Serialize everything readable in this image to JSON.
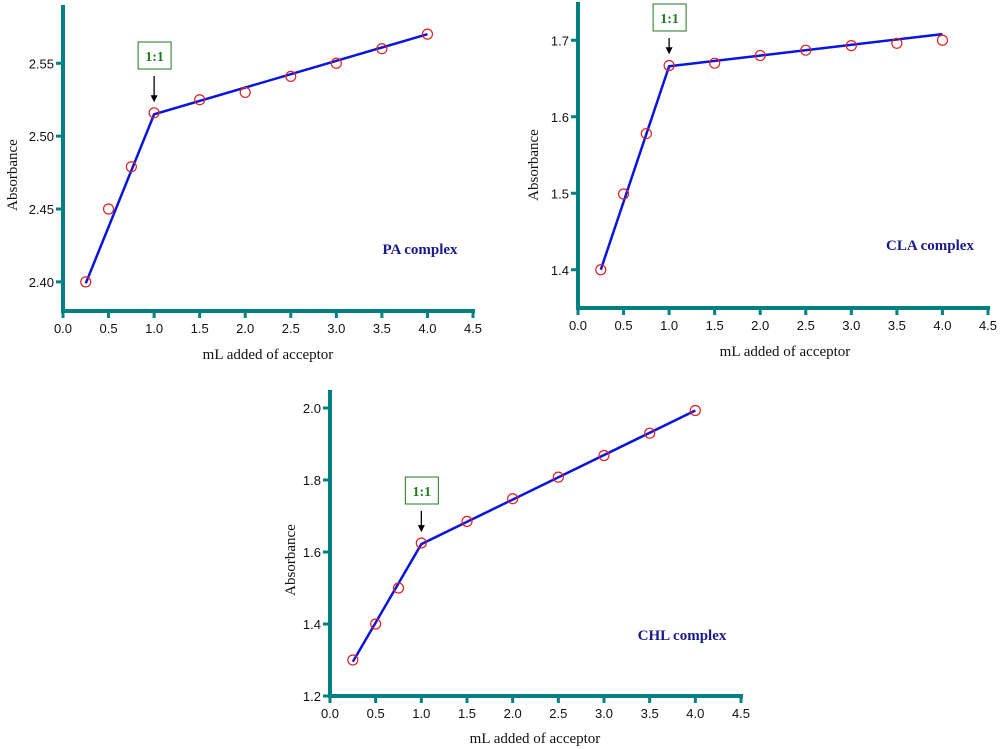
{
  "colors": {
    "axis": "#008080",
    "line": "#0a14e0",
    "marker": "#e02020",
    "annotation": "#1d7a1d",
    "label": "#1a1a8c"
  },
  "chart_data": [
    {
      "type": "line",
      "title": "PA complex",
      "xlabel": "mL added of acceptor",
      "ylabel": "Absorbance",
      "xlim": [
        0,
        4.5
      ],
      "ylim": [
        2.38,
        2.59
      ],
      "xticks": [
        "0.0",
        "0.5",
        "1.0",
        "1.5",
        "2.0",
        "2.5",
        "3.0",
        "3.5",
        "4.0",
        "4.5"
      ],
      "yticks": [
        "2.40",
        "2.45",
        "2.50",
        "2.55"
      ],
      "points": {
        "x": [
          0.25,
          0.5,
          0.75,
          1.0,
          1.5,
          2.0,
          2.5,
          3.0,
          3.5,
          4.0
        ],
        "y": [
          2.4,
          2.45,
          2.479,
          2.516,
          2.525,
          2.53,
          2.541,
          2.55,
          2.56,
          2.57
        ]
      },
      "fit_line": {
        "x": [
          0.25,
          1.0,
          4.0
        ],
        "y": [
          2.399,
          2.515,
          2.57
        ]
      },
      "annotation": {
        "text": "1:1",
        "x": 1.0
      }
    },
    {
      "type": "line",
      "title": "CLA complex",
      "xlabel": "mL added of acceptor",
      "ylabel": "Absorbance",
      "xlim": [
        0,
        4.5
      ],
      "ylim": [
        1.35,
        1.75
      ],
      "xticks": [
        "0.0",
        "0.5",
        "1.0",
        "1.5",
        "2.0",
        "2.5",
        "3.0",
        "3.5",
        "4.0",
        "4.5"
      ],
      "yticks": [
        "1.4",
        "1.5",
        "1.6",
        "1.7"
      ],
      "points": {
        "x": [
          0.25,
          0.5,
          0.75,
          1.0,
          1.5,
          2.0,
          2.5,
          3.0,
          3.5,
          4.0
        ],
        "y": [
          1.4,
          1.499,
          1.578,
          1.667,
          1.67,
          1.68,
          1.687,
          1.693,
          1.696,
          1.7
        ]
      },
      "fit_line": {
        "x": [
          0.25,
          1.0,
          4.0
        ],
        "y": [
          1.4,
          1.666,
          1.708
        ]
      },
      "annotation": {
        "text": "1:1",
        "x": 1.0
      }
    },
    {
      "type": "line",
      "title": "CHL complex",
      "xlabel": "mL added of acceptor",
      "ylabel": "Absorbance",
      "xlim": [
        0,
        4.5
      ],
      "ylim": [
        1.2,
        2.05
      ],
      "xticks": [
        "0.0",
        "0.5",
        "1.0",
        "1.5",
        "2.0",
        "2.5",
        "3.0",
        "3.5",
        "4.0",
        "4.5"
      ],
      "yticks": [
        "1.2",
        "1.4",
        "1.6",
        "1.8",
        "2.0"
      ],
      "points": {
        "x": [
          0.25,
          0.5,
          0.75,
          1.0,
          1.5,
          2.0,
          2.5,
          3.0,
          3.5,
          4.0
        ],
        "y": [
          1.3,
          1.4,
          1.5,
          1.625,
          1.685,
          1.748,
          1.808,
          1.868,
          1.93,
          1.993
        ]
      },
      "fit_line": {
        "x": [
          0.25,
          1.0,
          4.0
        ],
        "y": [
          1.295,
          1.622,
          1.993
        ]
      },
      "annotation": {
        "text": "1:1",
        "x": 1.0
      }
    }
  ]
}
